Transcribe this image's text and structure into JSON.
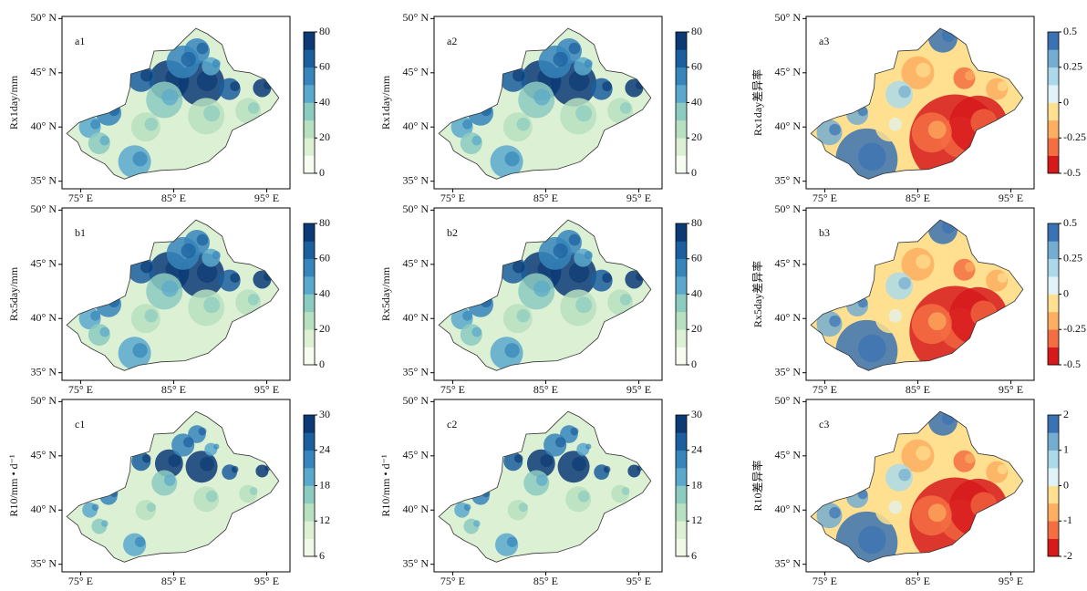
{
  "figure": {
    "lat_ticks": [
      {
        "value": 50,
        "label": "50° N"
      },
      {
        "value": 45,
        "label": "45° N"
      },
      {
        "value": 40,
        "label": "40° N"
      },
      {
        "value": 35,
        "label": "35° N"
      }
    ],
    "lon_ticks": [
      {
        "value": 75,
        "label": "75° E"
      },
      {
        "value": 85,
        "label": "85° E"
      },
      {
        "value": 95,
        "label": "95° E"
      }
    ],
    "xlim": [
      73,
      97.5
    ],
    "ylim": [
      34.3,
      50.2
    ],
    "panels": [
      {
        "label": "a1",
        "ylabel": "Rx1day/mm",
        "kind": "amount",
        "clim": [
          0,
          80
        ],
        "cticks": [
          0,
          20,
          40,
          60,
          80
        ],
        "colors": [
          "#f7fcf0",
          "#dcf0d4",
          "#b7e0c0",
          "#8ccbc0",
          "#5aa9cc",
          "#3685bb",
          "#1b5f9e",
          "#0b3a75"
        ]
      },
      {
        "label": "a2",
        "ylabel": "Rx1day/mm",
        "kind": "amount",
        "clim": [
          0,
          80
        ],
        "cticks": [
          0,
          20,
          40,
          60,
          80
        ],
        "colors": [
          "#f7fcf0",
          "#dcf0d4",
          "#b7e0c0",
          "#8ccbc0",
          "#5aa9cc",
          "#3685bb",
          "#1b5f9e",
          "#0b3a75"
        ]
      },
      {
        "label": "a3",
        "ylabel": "Rx1day差异率",
        "kind": "ratio",
        "clim": [
          -0.5,
          0.5
        ],
        "cticks": [
          0.5,
          0.25,
          0,
          -0.25,
          -0.5
        ],
        "colors": [
          "#d7191c",
          "#f46d43",
          "#fdae61",
          "#fee090",
          "#e0f3f8",
          "#abd9e9",
          "#74add1",
          "#3b72b3"
        ]
      },
      {
        "label": "b1",
        "ylabel": "Rx5day/mm",
        "kind": "amount",
        "clim": [
          0,
          80
        ],
        "cticks": [
          0,
          20,
          40,
          60,
          80
        ],
        "colors": [
          "#f7fcf0",
          "#dcf0d4",
          "#b7e0c0",
          "#8ccbc0",
          "#5aa9cc",
          "#3685bb",
          "#1b5f9e",
          "#0b3a75"
        ]
      },
      {
        "label": "b2",
        "ylabel": "Rx5day/mm",
        "kind": "amount",
        "clim": [
          0,
          80
        ],
        "cticks": [
          0,
          20,
          40,
          60,
          80
        ],
        "colors": [
          "#f7fcf0",
          "#dcf0d4",
          "#b7e0c0",
          "#8ccbc0",
          "#5aa9cc",
          "#3685bb",
          "#1b5f9e",
          "#0b3a75"
        ]
      },
      {
        "label": "b3",
        "ylabel": "Rx5day差异率",
        "kind": "ratio",
        "clim": [
          -0.5,
          0.5
        ],
        "cticks": [
          0.5,
          0.25,
          0,
          -0.25,
          -0.5
        ],
        "colors": [
          "#d7191c",
          "#f46d43",
          "#fdae61",
          "#fee090",
          "#e0f3f8",
          "#abd9e9",
          "#74add1",
          "#3b72b3"
        ]
      },
      {
        "label": "c1",
        "ylabel": "R10/mm • d⁻¹",
        "kind": "amount",
        "clim": [
          6,
          30
        ],
        "cticks": [
          6,
          12,
          18,
          24,
          30
        ],
        "colors": [
          "#f0f9e8",
          "#dcf0d4",
          "#b7e0c0",
          "#8ccbc0",
          "#5aa9cc",
          "#3685bb",
          "#1b5f9e",
          "#0b3a75"
        ]
      },
      {
        "label": "c2",
        "ylabel": "R10/mm • d⁻¹",
        "kind": "amount",
        "clim": [
          6,
          30
        ],
        "cticks": [
          6,
          12,
          18,
          24,
          30
        ],
        "colors": [
          "#f0f9e8",
          "#dcf0d4",
          "#b7e0c0",
          "#8ccbc0",
          "#5aa9cc",
          "#3685bb",
          "#1b5f9e",
          "#0b3a75"
        ]
      },
      {
        "label": "c3",
        "ylabel": "R10差异率",
        "kind": "ratio",
        "clim": [
          -2,
          2
        ],
        "cticks": [
          2,
          1,
          0,
          -1,
          -2
        ],
        "colors": [
          "#d7191c",
          "#f46d43",
          "#fdae61",
          "#fee090",
          "#e0f3f8",
          "#abd9e9",
          "#74add1",
          "#3b72b3"
        ]
      }
    ]
  }
}
